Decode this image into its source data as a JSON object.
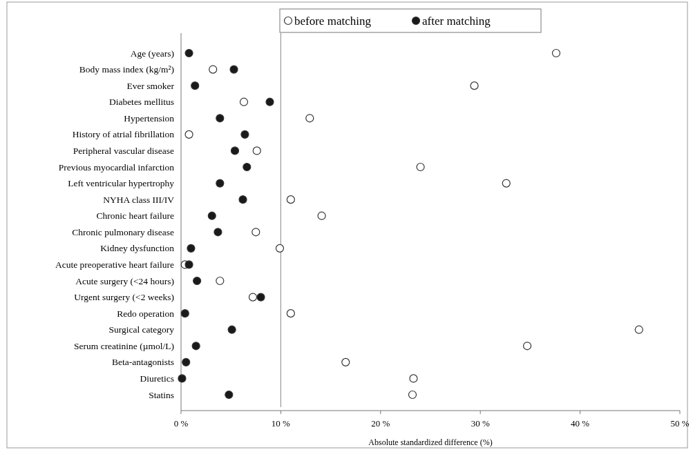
{
  "chart_data": {
    "type": "scatter",
    "orientation": "horizontal",
    "xlabel": "Absolute standardized difference (%)",
    "categories": [
      "Age (years)",
      "Body mass index (kg/m²)",
      "Ever smoker",
      "Diabetes mellitus",
      "Hypertension",
      "History of atrial fibrillation",
      "Peripheral vascular disease",
      "Previous myocardial infarction",
      "Left ventricular hypertrophy",
      "NYHA class III/IV",
      "Chronic heart failure",
      "Chronic pulmonary disease",
      "Kidney dysfunction",
      "Acute preoperative heart failure",
      "Acute surgery (<24 hours)",
      "Urgent surgery (<2 weeks)",
      "Redo operation",
      "Surgical category",
      "Serum creatinine (µmol/L)",
      "Beta-antagonists",
      "Diuretics",
      "Statins"
    ],
    "series": [
      {
        "name": "before matching",
        "color": "#ffffff",
        "values": [
          37.6,
          3.2,
          29.4,
          6.3,
          12.9,
          0.8,
          7.6,
          24.0,
          32.6,
          11.0,
          14.1,
          7.5,
          9.9,
          0.4,
          3.9,
          7.2,
          11.0,
          45.9,
          34.7,
          16.5,
          23.3,
          23.2
        ]
      },
      {
        "name": "after matching",
        "color": "#1a1a1a",
        "values": [
          0.8,
          5.3,
          1.4,
          8.9,
          3.9,
          6.4,
          5.4,
          6.6,
          3.9,
          6.2,
          3.1,
          3.7,
          1.0,
          0.8,
          1.6,
          8.0,
          0.4,
          5.1,
          1.5,
          0.5,
          0.1,
          4.8
        ]
      }
    ],
    "xlim": [
      0,
      50
    ],
    "xticks": [
      {
        "value": 0,
        "label": "0 %"
      },
      {
        "value": 10,
        "label": "10 %"
      },
      {
        "value": 20,
        "label": "20 %"
      },
      {
        "value": 30,
        "label": "30 %"
      },
      {
        "value": 40,
        "label": "40 %"
      },
      {
        "value": 50,
        "label": "50 %"
      }
    ],
    "ref_lines": [
      {
        "axis": "x",
        "value": 10,
        "color": "#999999"
      }
    ],
    "marker": "circle",
    "grid": false,
    "legend": "top"
  }
}
